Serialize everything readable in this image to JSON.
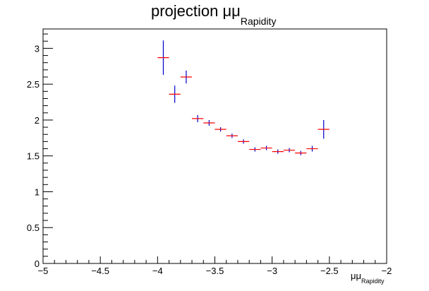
{
  "chart_data": {
    "type": "scatter",
    "title": {
      "main": "projection μμ",
      "subscript": "Rapidity"
    },
    "xlabel": {
      "main": "μμ",
      "subscript": "Rapidity"
    },
    "ylabel": "",
    "xlim": [
      -5,
      -2
    ],
    "ylim": [
      0,
      3.27
    ],
    "x_ticks": [
      -5,
      -4.5,
      -4,
      -3.5,
      -3,
      -2.5,
      -2
    ],
    "x_tick_labels": [
      "−5",
      "−4.5",
      "−4",
      "−3.5",
      "−3",
      "−2.5",
      "−2"
    ],
    "y_ticks": [
      0,
      0.5,
      1,
      1.5,
      2,
      2.5,
      3
    ],
    "y_tick_labels": [
      "0",
      "0.5",
      "1",
      "1.5",
      "2",
      "2.5",
      "3"
    ],
    "bin_width": 0.1,
    "grid": false,
    "legend": "none",
    "colors": {
      "marker": "#ff0000",
      "error_bar": "#0000cc",
      "frame": "#000000"
    },
    "series": [
      {
        "x": [
          -3.95,
          -3.85,
          -3.75,
          -3.65,
          -3.55,
          -3.45,
          -3.35,
          -3.25,
          -3.15,
          -3.05,
          -2.95,
          -2.85,
          -2.75,
          -2.65,
          -2.55
        ],
        "y": [
          2.87,
          2.36,
          2.6,
          2.02,
          1.96,
          1.87,
          1.78,
          1.7,
          1.59,
          1.61,
          1.56,
          1.58,
          1.54,
          1.6,
          1.87
        ],
        "yerr": [
          0.24,
          0.12,
          0.09,
          0.05,
          0.04,
          0.03,
          0.03,
          0.03,
          0.03,
          0.03,
          0.03,
          0.03,
          0.03,
          0.04,
          0.13
        ]
      }
    ]
  }
}
